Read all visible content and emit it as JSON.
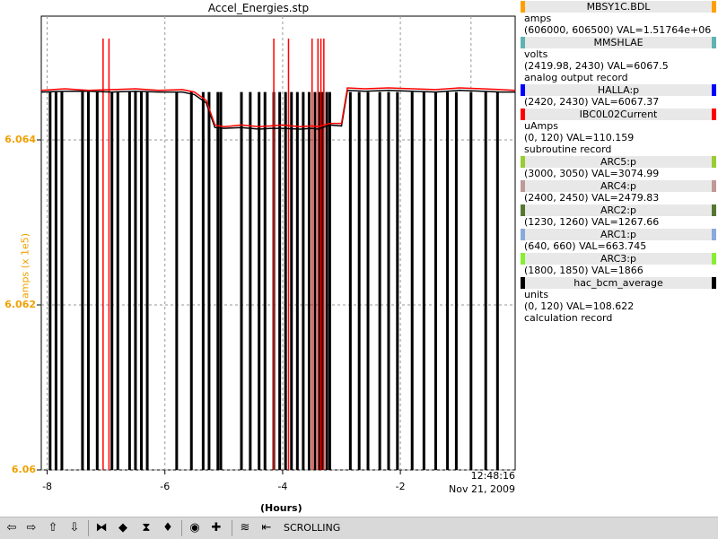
{
  "window": {
    "title": "Accel_Energies.stp"
  },
  "chart_data": {
    "type": "line",
    "title": "Accel_Energies.stp",
    "xlabel": "(Hours)",
    "ylabel": "amps (x 1e5)",
    "xlim": [
      -8.1,
      -0.05
    ],
    "ylim": [
      6.06,
      6.0655
    ],
    "x_ticks": [
      "-8",
      "-6",
      "-4",
      "-2"
    ],
    "y_ticks": [
      "6.06",
      "6.062",
      "6.064"
    ],
    "time_label": "12:48:16",
    "date_label": "Nov 21, 2009",
    "grid": true,
    "series": [
      {
        "name": "MBSY1C.BDL",
        "color": "#000000",
        "x": [
          -8.1,
          -7.7,
          -7.3,
          -6.9,
          -6.5,
          -6.1,
          -5.7,
          -5.5,
          -5.3,
          -5.15,
          -5.0,
          -4.7,
          -4.4,
          -4.2,
          -4.0,
          -3.7,
          -3.5,
          -3.4,
          -3.2,
          -3.0,
          -2.9,
          -2.6,
          -2.2,
          -1.8,
          -1.4,
          -1.0,
          -0.6,
          -0.3,
          -0.05
        ],
        "values": [
          6.06458,
          6.06459,
          6.06459,
          6.06458,
          6.06459,
          6.06458,
          6.06458,
          6.06455,
          6.06445,
          6.06415,
          6.06414,
          6.06415,
          6.06413,
          6.06414,
          6.06414,
          6.06413,
          6.06414,
          6.06413,
          6.06418,
          6.06417,
          6.0646,
          6.06459,
          6.0646,
          6.06459,
          6.06458,
          6.0646,
          6.06459,
          6.06458,
          6.06458
        ]
      },
      {
        "name": "IBC0L02Current",
        "color": "#ff0000",
        "x": [
          -8.1,
          -7.7,
          -7.3,
          -6.9,
          -6.5,
          -6.1,
          -5.7,
          -5.5,
          -5.3,
          -5.15,
          -5.0,
          -4.7,
          -4.4,
          -4.2,
          -4.0,
          -3.7,
          -3.5,
          -3.4,
          -3.2,
          -3.0,
          -2.9,
          -2.6,
          -2.2,
          -1.8,
          -1.4,
          -1.0,
          -0.6,
          -0.3,
          -0.05
        ],
        "values": [
          6.0646,
          6.06462,
          6.0646,
          6.06461,
          6.06462,
          6.0646,
          6.06461,
          6.06458,
          6.06448,
          6.06418,
          6.06416,
          6.06418,
          6.06416,
          6.06417,
          6.06418,
          6.06416,
          6.06417,
          6.06416,
          6.0642,
          6.0642,
          6.06463,
          6.06462,
          6.06463,
          6.06462,
          6.06461,
          6.06463,
          6.06462,
          6.06461,
          6.0646
        ]
      }
    ],
    "drops_black": [
      -7.95,
      -7.85,
      -7.75,
      -7.4,
      -7.3,
      -7.15,
      -6.9,
      -6.8,
      -6.6,
      -6.5,
      -6.4,
      -6.3,
      -5.8,
      -5.55,
      -5.35,
      -5.25,
      -5.1,
      -5.05,
      -4.7,
      -4.55,
      -4.4,
      -4.3,
      -4.15,
      -4.05,
      -3.95,
      -3.85,
      -3.75,
      -3.65,
      -3.55,
      -3.45,
      -3.38,
      -3.32,
      -3.25,
      -3.2,
      -2.85,
      -2.7,
      -2.55,
      -2.35,
      -2.2,
      -2.05,
      -1.8,
      -1.6,
      -1.4,
      -1.2,
      -1.05,
      -0.8,
      -0.55,
      -0.35
    ],
    "drops_red": [
      -7.05,
      -6.95,
      -4.15,
      -3.9,
      -3.5,
      -3.4,
      -3.35,
      -3.3
    ]
  },
  "legend": [
    {
      "name": "MBSY1C.BDL",
      "color": "#ffa000",
      "units": "amps",
      "info": "(606000, 606500)  VAL=1.51764e+06",
      "desc": ""
    },
    {
      "name": "MMSHLAE",
      "color": "#5fb3b3",
      "units": "volts",
      "info": "(2419.98, 2430) VAL=6067.5",
      "desc": "analog output record"
    },
    {
      "name": "HALLA:p",
      "color": "#0000ff",
      "units": "",
      "info": "(2420, 2430) VAL=6067.37",
      "desc": ""
    },
    {
      "name": "IBC0L02Current",
      "color": "#ff0000",
      "units": "uAmps",
      "info": "(0, 120) VAL=110.159",
      "desc": "subroutine record"
    },
    {
      "name": "ARC5:p",
      "color": "#99cc33",
      "units": "",
      "info": "(3000, 3050) VAL=3074.99",
      "desc": ""
    },
    {
      "name": "ARC4:p",
      "color": "#c09898",
      "units": "",
      "info": "(2400, 2450) VAL=2479.83",
      "desc": ""
    },
    {
      "name": "ARC2:p",
      "color": "#557733",
      "units": "",
      "info": "(1230, 1260) VAL=1267.66",
      "desc": ""
    },
    {
      "name": "ARC1:p",
      "color": "#88aadd",
      "units": "",
      "info": "(640, 660) VAL=663.745",
      "desc": ""
    },
    {
      "name": "ARC3:p",
      "color": "#88ee33",
      "units": "",
      "info": "(1800, 1850) VAL=1866",
      "desc": ""
    },
    {
      "name": "hac_bcm_average",
      "color": "#000000",
      "units": "units",
      "info": "(0, 120) VAL=108.622",
      "desc": "calculation record"
    }
  ],
  "toolbar": {
    "status": "SCROLLING",
    "buttons": [
      {
        "name": "pan-left-icon",
        "glyph": "⇦"
      },
      {
        "name": "pan-right-icon",
        "glyph": "⇨"
      },
      {
        "name": "pan-up-icon",
        "glyph": "⇧"
      },
      {
        "name": "pan-down-icon",
        "glyph": "⇩"
      },
      {
        "name": "zoom-in-x-icon",
        "glyph": "⧓"
      },
      {
        "name": "zoom-out-x-icon",
        "glyph": "◆"
      },
      {
        "name": "zoom-in-y-icon",
        "glyph": "⧗"
      },
      {
        "name": "zoom-out-y-icon",
        "glyph": "♦"
      },
      {
        "name": "autoscale-icon",
        "glyph": "◉"
      },
      {
        "name": "add-icon",
        "glyph": "✚"
      },
      {
        "name": "scroll-mode-icon",
        "glyph": "≋"
      },
      {
        "name": "pan-back-icon",
        "glyph": "⇤"
      }
    ]
  }
}
